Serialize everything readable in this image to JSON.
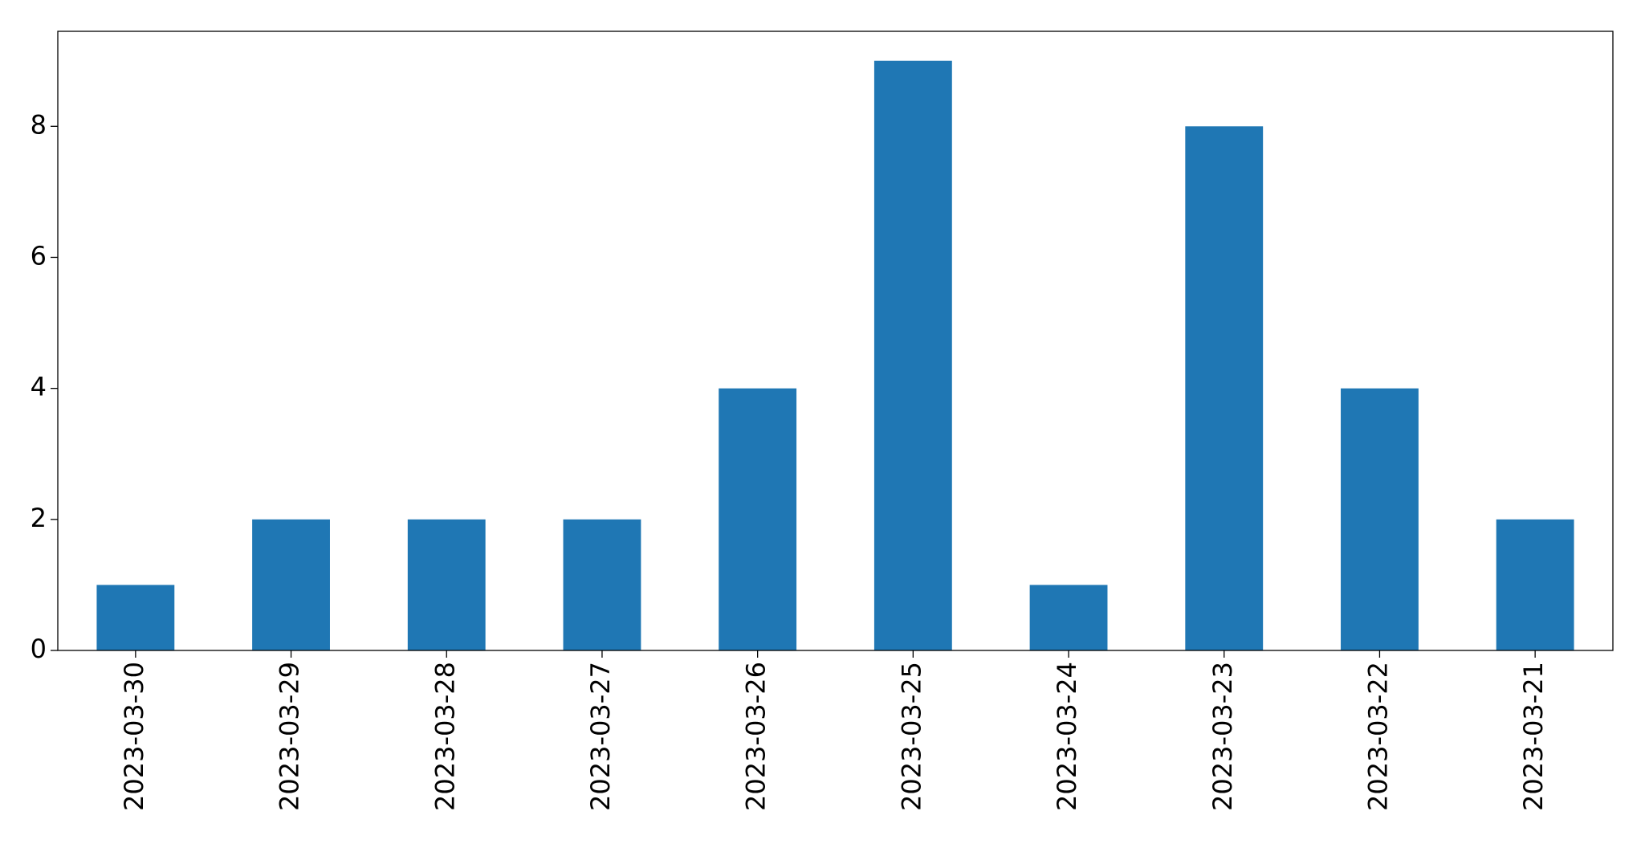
{
  "chart_data": {
    "type": "bar",
    "categories": [
      "2023-03-30",
      "2023-03-29",
      "2023-03-28",
      "2023-03-27",
      "2023-03-26",
      "2023-03-25",
      "2023-03-24",
      "2023-03-23",
      "2023-03-22",
      "2023-03-21"
    ],
    "values": [
      1,
      2,
      2,
      2,
      4,
      9,
      1,
      8,
      4,
      2
    ],
    "color": "#1f77b4",
    "ylim": [
      0,
      9.45
    ],
    "yticks": [
      0,
      2,
      4,
      6,
      8
    ],
    "grid": false
  }
}
